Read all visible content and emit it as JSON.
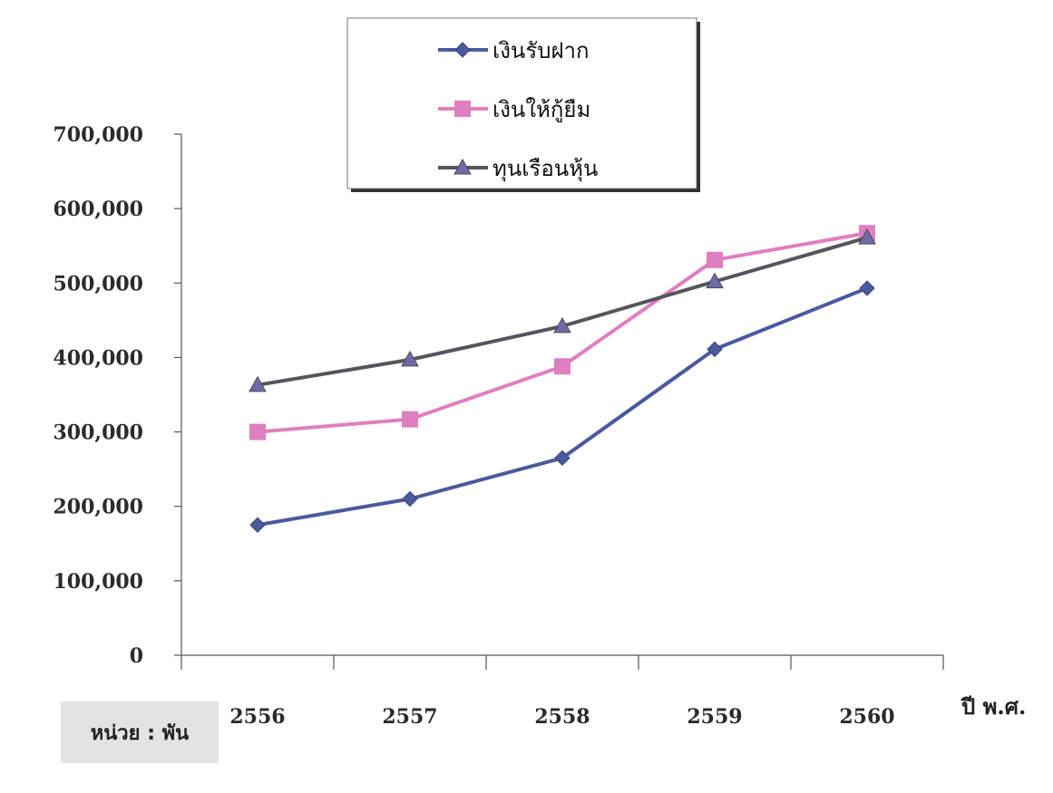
{
  "chart_data": {
    "type": "line",
    "title": "",
    "xlabel": "ปี พ.ศ.",
    "ylabel": "",
    "unit_note": "หน่วย : พัน",
    "categories": [
      "2556",
      "2557",
      "2558",
      "2559",
      "2560"
    ],
    "ylim": [
      0,
      700000
    ],
    "yticks": [
      0,
      100000,
      200000,
      300000,
      400000,
      500000,
      600000,
      700000
    ],
    "ytick_labels": [
      "0",
      "100,000",
      "200,000",
      "300,000",
      "400,000",
      "500,000",
      "600,000",
      "700,000"
    ],
    "legend_position": "top-center",
    "grid": false,
    "series": [
      {
        "name": "เงินรับฝาก",
        "values": [
          175000,
          210000,
          265000,
          411000,
          493000
        ],
        "color": "#4a5a9c",
        "marker": "diamond"
      },
      {
        "name": "เงินให้กู้ยืม",
        "values": [
          300000,
          317000,
          388000,
          531000,
          567000
        ],
        "color": "#e07fbf",
        "marker": "square"
      },
      {
        "name": "ทุนเรือนหุ้น",
        "values": [
          363000,
          397000,
          442000,
          502000,
          561000
        ],
        "color": "#55555e",
        "marker": "triangle"
      }
    ]
  }
}
